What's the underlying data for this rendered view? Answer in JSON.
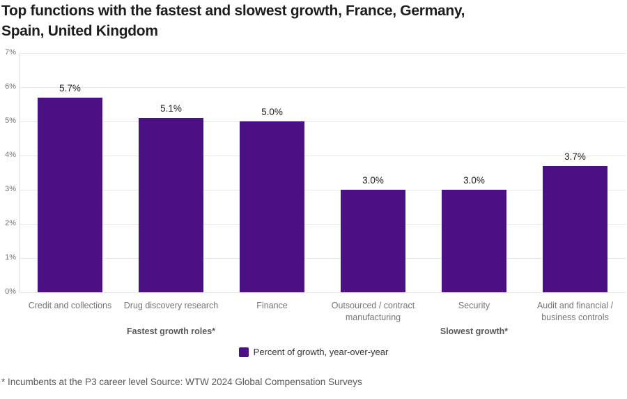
{
  "page": {
    "title_line1": "Top functions with the fastest and slowest growth, France, Germany,",
    "title_line2": "Spain, United Kingdom",
    "footer": "* Incumbents at the P3 career level Source: WTW 2024 Global Compensation Surveys"
  },
  "legend": {
    "label": "Percent of growth, year-over-year"
  },
  "chart_data": {
    "type": "bar",
    "title": "Top functions with the fastest and slowest growth, France, Germany, Spain, United Kingdom",
    "categories": [
      "Credit and collections",
      "Drug discovery research",
      "Finance",
      "Outsourced / contract manufacturing",
      "Security",
      "Audit and financial / business controls"
    ],
    "values": [
      5.7,
      5.1,
      5.0,
      3.0,
      3.0,
      3.7
    ],
    "data_labels": [
      "5.7%",
      "5.1%",
      "5.0%",
      "3.0%",
      "3.0%",
      "3.7%"
    ],
    "group_labels": [
      {
        "label": "Fastest growth roles*",
        "center_category_index": 1
      },
      {
        "label": "Slowest growth*",
        "center_category_index": 4
      }
    ],
    "xlabel": "",
    "ylabel": "",
    "ylim": [
      0,
      7
    ],
    "yticks": [
      "0%",
      "1%",
      "2%",
      "3%",
      "4%",
      "5%",
      "6%",
      "7%"
    ],
    "grid": true,
    "legend": "Percent of growth, year-over-year",
    "legend_position": "bottom",
    "bar_color": "#4b1184",
    "source": "Source: WTW 2024 Global Compensation Surveys",
    "footnote": "* Incumbents at the P3 career level"
  }
}
